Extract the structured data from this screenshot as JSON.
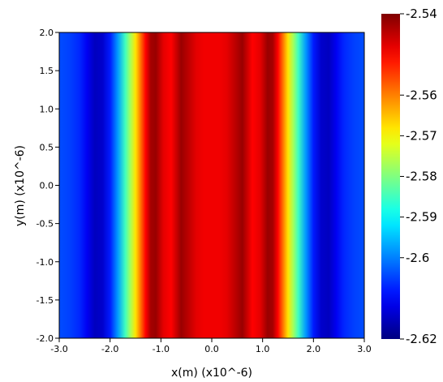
{
  "chart_data": {
    "type": "heatmap",
    "title": "",
    "xlabel": "x(m) (x10^-6)",
    "ylabel": "y(m) (x10^-6)",
    "xlim": [
      -3.0,
      3.0
    ],
    "ylim": [
      -2.0,
      2.0
    ],
    "x_ticks": [
      "-3.0",
      "-2.0",
      "-1.0",
      "0.0",
      "1.0",
      "2.0",
      "3.0"
    ],
    "y_ticks": [
      "-2.0",
      "-1.5",
      "-1.0",
      "-0.5",
      "0.0",
      "0.5",
      "1.0",
      "1.5",
      "2.0"
    ],
    "colormap": "jet",
    "colorbar": {
      "range": [
        -2.62,
        -2.54
      ],
      "ticks": [
        "-2.54",
        "-2.56",
        "-2.57",
        "-2.58",
        "-2.59",
        "-2.6",
        "-2.62"
      ],
      "placement": "right"
    },
    "grid": false,
    "profile_along_x": {
      "x": [
        -3.0,
        -2.8,
        -2.6,
        -2.45,
        -2.3,
        -2.15,
        -2.0,
        -1.85,
        -1.7,
        -1.6,
        -1.5,
        -1.4,
        -1.3,
        -1.2,
        -1.1,
        -0.95,
        -0.8,
        -0.7,
        -0.6,
        -0.45,
        -0.3,
        -0.15,
        0.0,
        0.15,
        0.3,
        0.45,
        0.6,
        0.7,
        0.8,
        0.95,
        1.1,
        1.2,
        1.3,
        1.4,
        1.5,
        1.6,
        1.7,
        1.85,
        2.0,
        2.15,
        2.3,
        2.45,
        2.6,
        2.8,
        3.0
      ],
      "value": [
        -2.604,
        -2.605,
        -2.607,
        -2.611,
        -2.615,
        -2.614,
        -2.608,
        -2.598,
        -2.585,
        -2.577,
        -2.568,
        -2.559,
        -2.55,
        -2.543,
        -2.542,
        -2.548,
        -2.55,
        -2.546,
        -2.542,
        -2.545,
        -2.548,
        -2.549,
        -2.549,
        -2.549,
        -2.548,
        -2.545,
        -2.542,
        -2.546,
        -2.55,
        -2.548,
        -2.542,
        -2.543,
        -2.55,
        -2.559,
        -2.568,
        -2.577,
        -2.585,
        -2.598,
        -2.608,
        -2.614,
        -2.615,
        -2.611,
        -2.607,
        -2.605,
        -2.604
      ]
    }
  }
}
